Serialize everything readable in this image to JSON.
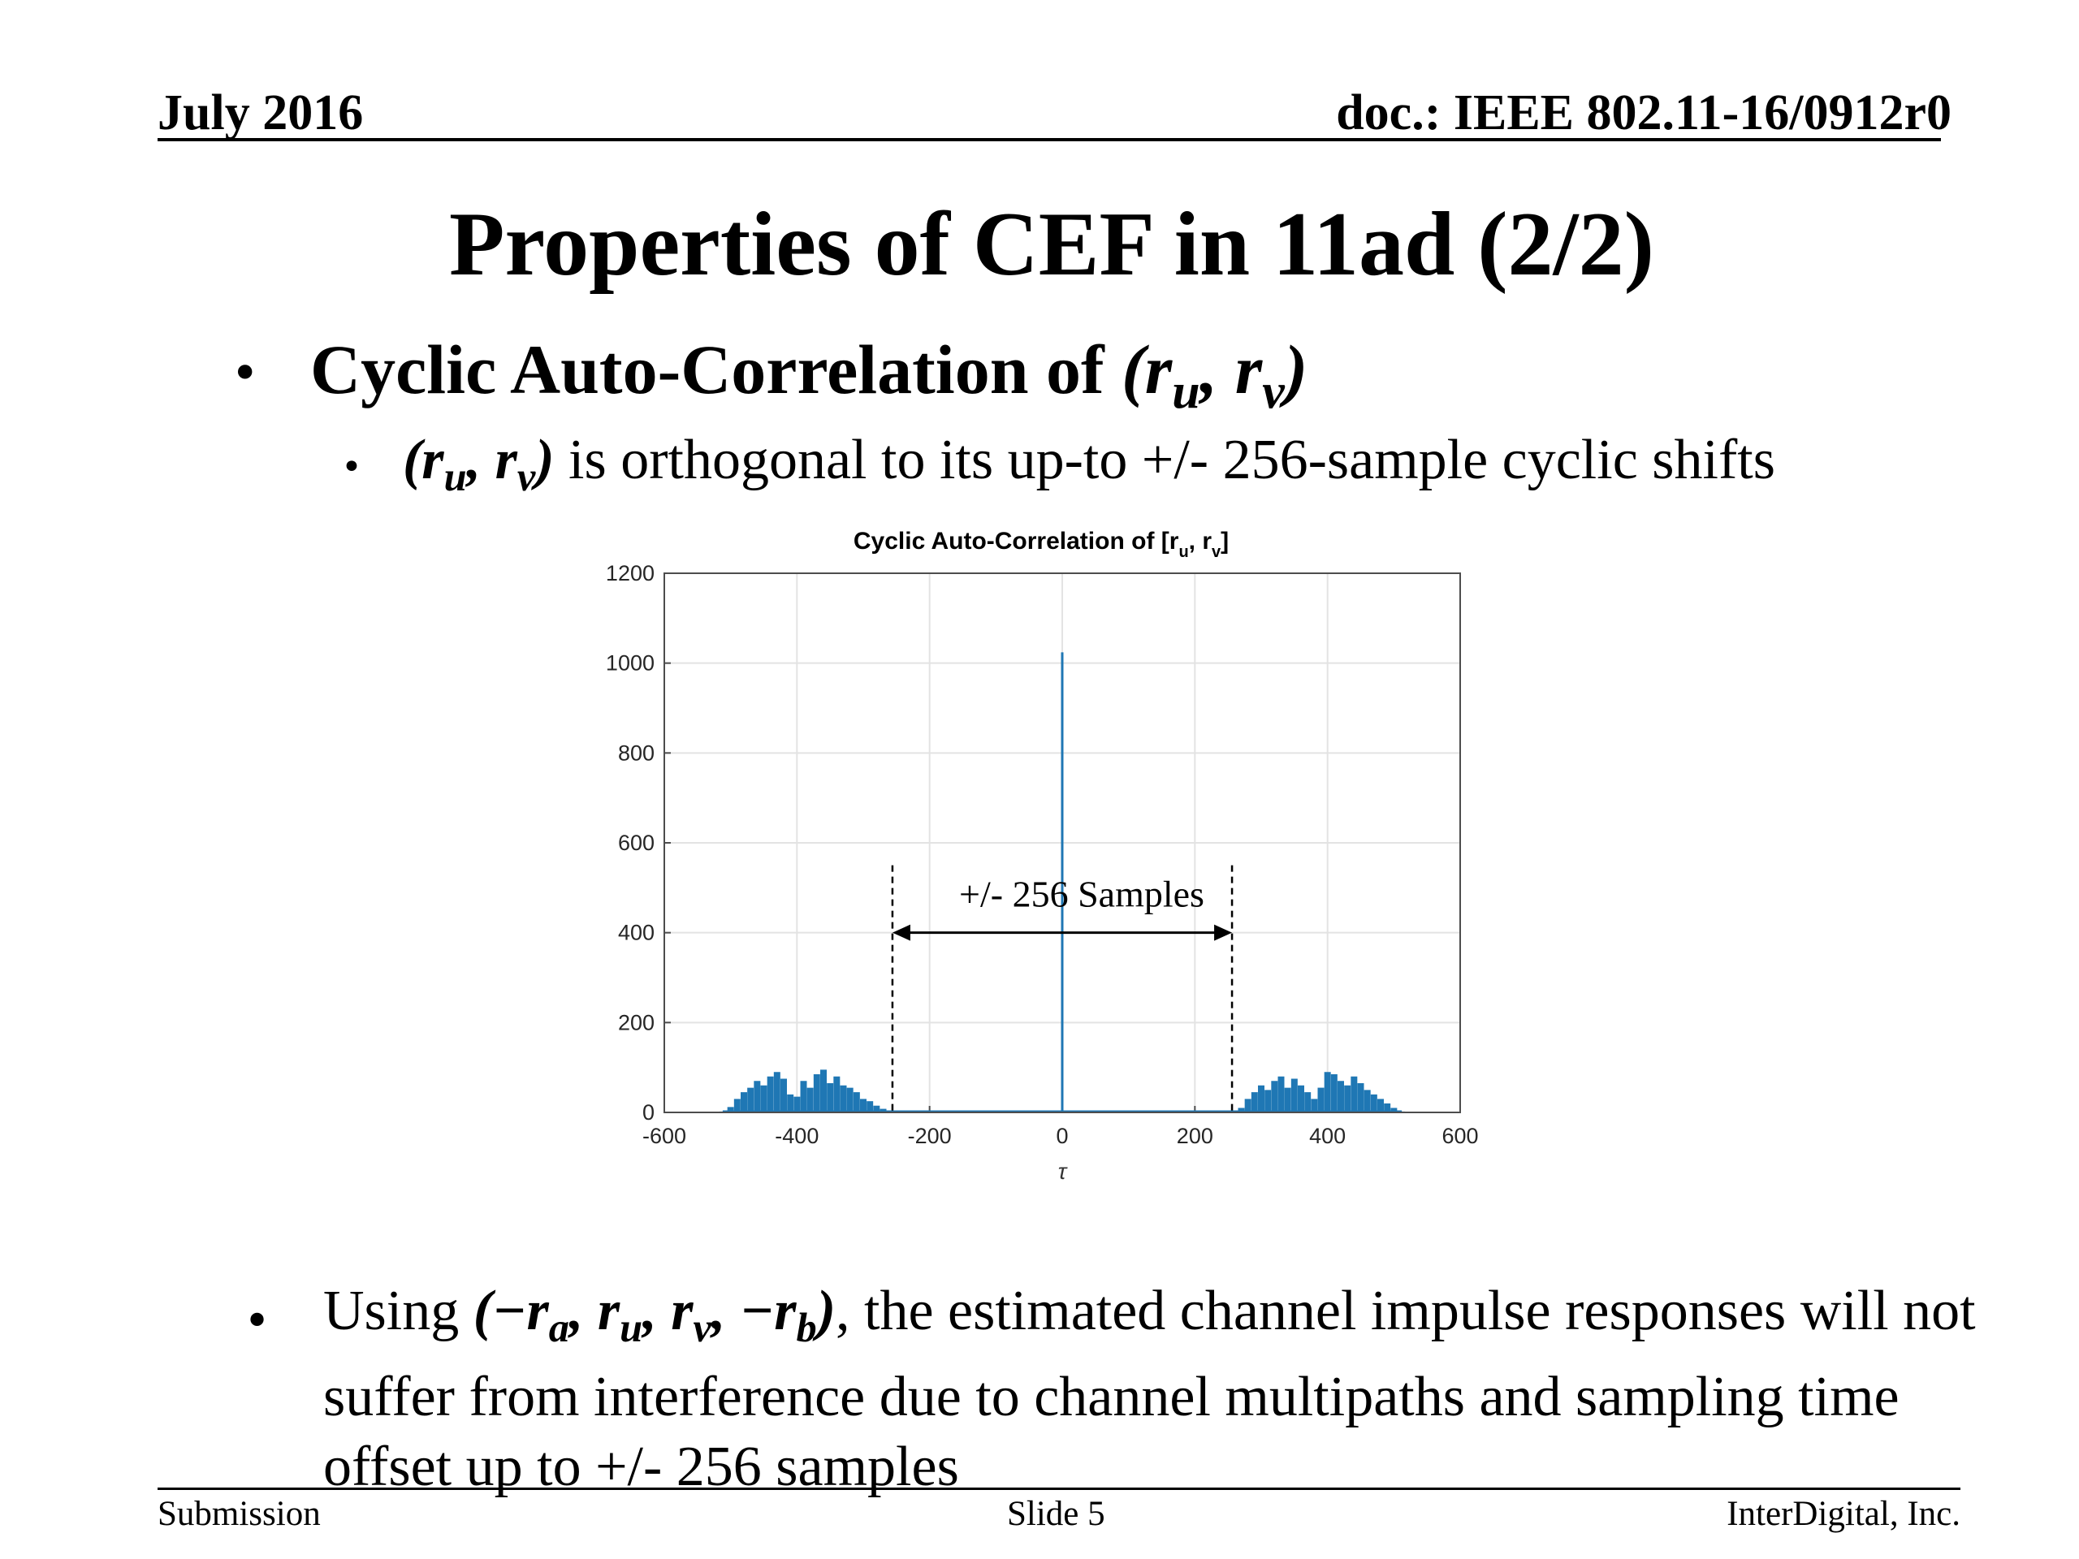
{
  "header": {
    "date": "July 2016",
    "doc": "doc.: IEEE 802.11-16/0912r0"
  },
  "title": "Properties of CEF in 11ad (2/2)",
  "bullet1": {
    "text": "Cyclic Auto-Correlation of ",
    "math": "(r",
    "u": "u",
    "sep": ", r",
    "v": "v",
    "close": ")"
  },
  "bullet2": {
    "math_open": "(r",
    "u": "u",
    "sep": ", r",
    "v": "v",
    "close": ")",
    "text": " is orthogonal to its up-to +/- 256-sample cyclic shifts"
  },
  "bullet3": {
    "prefix": "Using ",
    "math": "(−r",
    "a": "a",
    "m2": ", r",
    "u": "u",
    "m3": ", r",
    "v": "v",
    "m4": ", −r",
    "b": "b",
    "m5": ")",
    "text": ", the estimated channel impulse responses will not suffer from interference due to channel multipaths and sampling time offset up to +/- 256 samples"
  },
  "footer": {
    "left": "Submission",
    "center": "Slide 5",
    "right": "InterDigital, Inc."
  },
  "chart_data": {
    "type": "line",
    "title_prefix": "Cyclic Auto-Correlation of [r",
    "title_sub_u": "u",
    "title_mid": ", r",
    "title_sub_v": "v",
    "title_suffix": "]",
    "xlabel": "τ",
    "ylabel": "",
    "xlim": [
      -600,
      600
    ],
    "ylim": [
      0,
      1200
    ],
    "xticks": [
      "-600",
      "-400",
      "-200",
      "0",
      "200",
      "400",
      "600"
    ],
    "yticks": [
      "0",
      "200",
      "400",
      "600",
      "800",
      "1000",
      "1200"
    ],
    "grid": true,
    "peak": {
      "x": 0,
      "y": 1024
    },
    "annotation": {
      "text": "+/- 256 Samples",
      "from": -256,
      "to": 256,
      "y": 400
    },
    "sidelobes": [
      {
        "x": -512,
        "y": 2
      },
      {
        "x": -500,
        "y": 12
      },
      {
        "x": -490,
        "y": 30
      },
      {
        "x": -480,
        "y": 45
      },
      {
        "x": -470,
        "y": 55
      },
      {
        "x": -460,
        "y": 70
      },
      {
        "x": -450,
        "y": 60
      },
      {
        "x": -440,
        "y": 80
      },
      {
        "x": -430,
        "y": 90
      },
      {
        "x": -420,
        "y": 75
      },
      {
        "x": -410,
        "y": 40
      },
      {
        "x": -400,
        "y": 35
      },
      {
        "x": -390,
        "y": 70
      },
      {
        "x": -380,
        "y": 55
      },
      {
        "x": -370,
        "y": 85
      },
      {
        "x": -360,
        "y": 95
      },
      {
        "x": -350,
        "y": 65
      },
      {
        "x": -340,
        "y": 80
      },
      {
        "x": -330,
        "y": 60
      },
      {
        "x": -320,
        "y": 55
      },
      {
        "x": -310,
        "y": 45
      },
      {
        "x": -300,
        "y": 30
      },
      {
        "x": -290,
        "y": 25
      },
      {
        "x": -280,
        "y": 15
      },
      {
        "x": -270,
        "y": 8
      },
      {
        "x": -257,
        "y": 2
      },
      {
        "x": 257,
        "y": 2
      },
      {
        "x": 270,
        "y": 10
      },
      {
        "x": 280,
        "y": 30
      },
      {
        "x": 290,
        "y": 45
      },
      {
        "x": 300,
        "y": 60
      },
      {
        "x": 310,
        "y": 50
      },
      {
        "x": 320,
        "y": 70
      },
      {
        "x": 330,
        "y": 80
      },
      {
        "x": 340,
        "y": 55
      },
      {
        "x": 350,
        "y": 75
      },
      {
        "x": 360,
        "y": 60
      },
      {
        "x": 370,
        "y": 45
      },
      {
        "x": 380,
        "y": 30
      },
      {
        "x": 390,
        "y": 55
      },
      {
        "x": 400,
        "y": 90
      },
      {
        "x": 410,
        "y": 85
      },
      {
        "x": 420,
        "y": 70
      },
      {
        "x": 430,
        "y": 60
      },
      {
        "x": 440,
        "y": 80
      },
      {
        "x": 450,
        "y": 65
      },
      {
        "x": 460,
        "y": 50
      },
      {
        "x": 470,
        "y": 40
      },
      {
        "x": 480,
        "y": 30
      },
      {
        "x": 490,
        "y": 20
      },
      {
        "x": 500,
        "y": 10
      },
      {
        "x": 512,
        "y": 2
      }
    ],
    "colors": {
      "series": "#1f77b4",
      "grid": "#e3e3e3",
      "axis": "#4d4d4d"
    }
  }
}
